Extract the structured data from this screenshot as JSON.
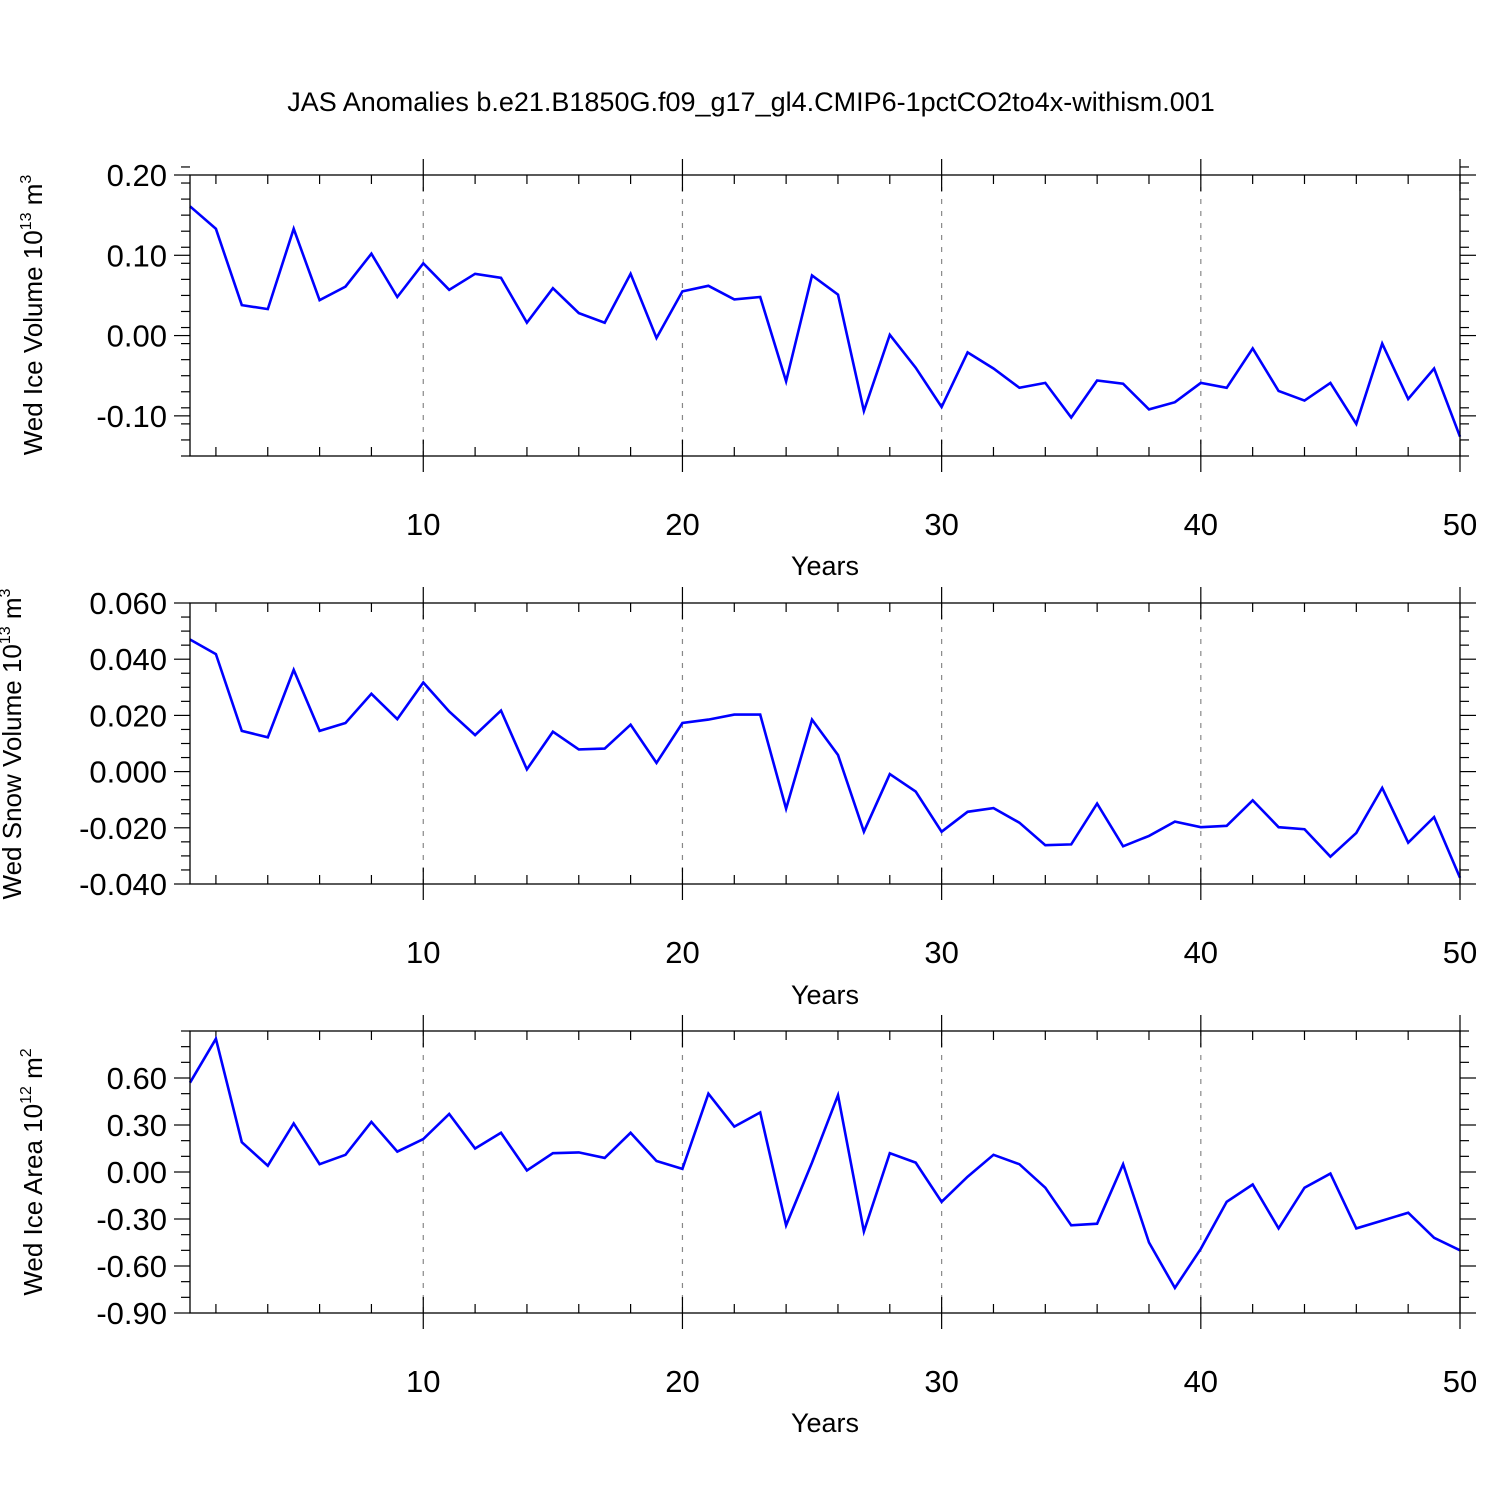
{
  "title": "JAS Anomalies b.e21.B1850G.f09_g17_gl4.CMIP6-1pctCO2to4x-withism.001",
  "colors": {
    "series": "#0000ff",
    "grid": "#888888",
    "frame": "#000000"
  },
  "chart_data": [
    {
      "type": "line",
      "ylabel_main": "Wed Ice Volume 10",
      "ylabel_exp": "13",
      "ylabel_unit": " m",
      "ylabel_unit_exp": "3",
      "xlabel": "Years",
      "xlim": [
        1,
        50
      ],
      "ylim": [
        -0.15,
        0.2
      ],
      "yticks": [
        -0.1,
        0.0,
        0.1,
        0.2
      ],
      "ytick_labels": [
        "-0.10",
        "0.00",
        "0.10",
        "0.20"
      ],
      "yminor_step": 0.02,
      "xticks": [
        10,
        20,
        30,
        40,
        50
      ],
      "xtick_labels": [
        "10",
        "20",
        "30",
        "40",
        "50"
      ],
      "x": [
        1,
        2,
        3,
        4,
        5,
        6,
        7,
        8,
        9,
        10,
        11,
        12,
        13,
        14,
        15,
        16,
        17,
        18,
        19,
        20,
        21,
        22,
        23,
        24,
        25,
        26,
        27,
        28,
        29,
        30,
        31,
        32,
        33,
        34,
        35,
        36,
        37,
        38,
        39,
        40,
        41,
        42,
        43,
        44,
        45,
        46,
        47,
        48,
        49,
        50
      ],
      "values": [
        0.161,
        0.133,
        0.038,
        0.033,
        0.133,
        0.044,
        0.061,
        0.102,
        0.048,
        0.09,
        0.057,
        0.077,
        0.072,
        0.016,
        0.059,
        0.028,
        0.016,
        0.077,
        -0.003,
        0.055,
        0.062,
        0.045,
        0.048,
        -0.057,
        0.075,
        0.051,
        -0.094,
        0.001,
        -0.04,
        -0.089,
        -0.021,
        -0.041,
        -0.065,
        -0.059,
        -0.102,
        -0.056,
        -0.06,
        -0.092,
        -0.083,
        -0.059,
        -0.065,
        -0.016,
        -0.069,
        -0.081,
        -0.059,
        -0.11,
        -0.01,
        -0.079,
        -0.041,
        -0.126
      ]
    },
    {
      "type": "line",
      "ylabel_main": "Wed Snow Volume 10",
      "ylabel_exp": "13",
      "ylabel_unit": " m",
      "ylabel_unit_exp": "3",
      "xlabel": "Years",
      "xlim": [
        1,
        50
      ],
      "ylim": [
        -0.04,
        0.06
      ],
      "yticks": [
        -0.04,
        -0.02,
        0.0,
        0.02,
        0.04,
        0.06
      ],
      "ytick_labels": [
        "-0.040",
        "-0.020",
        "0.000",
        "0.020",
        "0.040",
        "0.060"
      ],
      "yminor_step": 0.005,
      "xticks": [
        10,
        20,
        30,
        40,
        50
      ],
      "xtick_labels": [
        "10",
        "20",
        "30",
        "40",
        "50"
      ],
      "x": [
        1,
        2,
        3,
        4,
        5,
        6,
        7,
        8,
        9,
        10,
        11,
        12,
        13,
        14,
        15,
        16,
        17,
        18,
        19,
        20,
        21,
        22,
        23,
        24,
        25,
        26,
        27,
        28,
        29,
        30,
        31,
        32,
        33,
        34,
        35,
        36,
        37,
        38,
        39,
        40,
        41,
        42,
        43,
        44,
        45,
        46,
        47,
        48,
        49,
        50
      ],
      "values": [
        0.047,
        0.0418,
        0.0145,
        0.0122,
        0.0362,
        0.0145,
        0.0173,
        0.0277,
        0.0187,
        0.0317,
        0.0214,
        0.013,
        0.0217,
        0.0008,
        0.0142,
        0.0079,
        0.0082,
        0.0167,
        0.0031,
        0.0173,
        0.0185,
        0.0203,
        0.0203,
        -0.0132,
        0.0185,
        0.0059,
        -0.0214,
        -0.0009,
        -0.0071,
        -0.0214,
        -0.0143,
        -0.013,
        -0.0182,
        -0.0262,
        -0.0259,
        -0.0114,
        -0.0266,
        -0.0229,
        -0.0178,
        -0.0198,
        -0.0193,
        -0.0102,
        -0.0198,
        -0.0205,
        -0.0303,
        -0.0218,
        -0.0058,
        -0.0253,
        -0.0162,
        -0.0378
      ]
    },
    {
      "type": "line",
      "ylabel_main": "Wed Ice Area 10",
      "ylabel_exp": "12",
      "ylabel_unit": " m",
      "ylabel_unit_exp": "2",
      "xlabel": "Years",
      "xlim": [
        1,
        50
      ],
      "ylim": [
        -0.9,
        0.9
      ],
      "yticks": [
        -0.9,
        -0.6,
        -0.3,
        0.0,
        0.3,
        0.6
      ],
      "ytick_labels": [
        "-0.90",
        "-0.60",
        "-0.30",
        "0.00",
        "0.30",
        "0.60"
      ],
      "yminor_step": 0.1,
      "xticks": [
        10,
        20,
        30,
        40,
        50
      ],
      "xtick_labels": [
        "10",
        "20",
        "30",
        "40",
        "50"
      ],
      "x": [
        1,
        2,
        3,
        4,
        5,
        6,
        7,
        8,
        9,
        10,
        11,
        12,
        13,
        14,
        15,
        16,
        17,
        18,
        19,
        20,
        21,
        22,
        23,
        24,
        25,
        26,
        27,
        28,
        29,
        30,
        31,
        32,
        33,
        34,
        35,
        36,
        37,
        38,
        39,
        40,
        41,
        42,
        43,
        44,
        45,
        46,
        47,
        48,
        49,
        50
      ],
      "values": [
        0.57,
        0.85,
        0.19,
        0.04,
        0.31,
        0.05,
        0.11,
        0.32,
        0.13,
        0.21,
        0.37,
        0.15,
        0.25,
        0.01,
        0.12,
        0.125,
        0.09,
        0.25,
        0.07,
        0.02,
        0.5,
        0.29,
        0.38,
        -0.34,
        0.06,
        0.49,
        -0.38,
        0.12,
        0.06,
        -0.19,
        -0.03,
        0.11,
        0.05,
        -0.1,
        -0.34,
        -0.33,
        0.05,
        -0.45,
        -0.74,
        -0.49,
        -0.19,
        -0.08,
        -0.36,
        -0.1,
        -0.01,
        -0.36,
        -0.31,
        -0.26,
        -0.42,
        -0.5
      ]
    }
  ]
}
